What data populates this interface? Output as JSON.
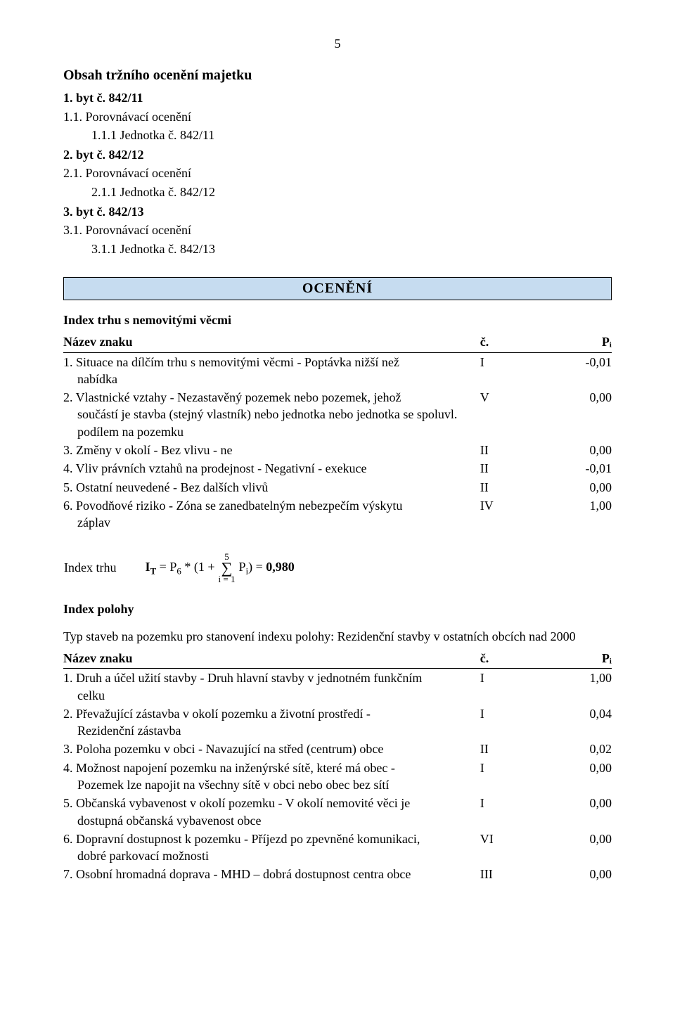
{
  "page_number": "5",
  "title": "Obsah tržního ocenění majetku",
  "toc": [
    {
      "num": "1. byt č. 842/11",
      "sub_num": "1.1. Porovnávací ocenění",
      "unit": "1.1.1 Jednotka č. 842/11"
    },
    {
      "num": "2. byt č. 842/12",
      "sub_num": "2.1. Porovnávací ocenění",
      "unit": "2.1.1 Jednotka č. 842/12"
    },
    {
      "num": "3. byt č. 842/13",
      "sub_num": "3.1. Porovnávací ocenění",
      "unit": "3.1.1 Jednotka č. 842/13"
    }
  ],
  "ocen_title": "OCENĚNÍ",
  "index_trhu_title": "Index trhu s nemovitými věcmi",
  "header": {
    "name": "Název znaku",
    "c": "č.",
    "p": "Pᵢ"
  },
  "index_trhu_rows": [
    {
      "n": "1. Situace na dílčím trhu s nemovitými věcmi - Poptávka nižší než",
      "cont": "nabídka",
      "c": "I",
      "p": "-0,01"
    },
    {
      "n": "2. Vlastnické vztahy - Nezastavěný pozemek nebo pozemek, jehož",
      "cont": "součástí je stavba (stejný vlastník) nebo jednotka nebo jednotka se spoluvl. podílem na pozemku",
      "c": "V",
      "p": "0,00"
    },
    {
      "n": "3. Změny v okolí - Bez vlivu - ne",
      "cont": "",
      "c": "II",
      "p": "0,00"
    },
    {
      "n": "4. Vliv právních vztahů na prodejnost - Negativní - exekuce",
      "cont": "",
      "c": "II",
      "p": "-0,01"
    },
    {
      "n": "5. Ostatní neuvedené - Bez dalších vlivů",
      "cont": "",
      "c": "II",
      "p": "0,00"
    },
    {
      "n": "6. Povodňové riziko - Zóna se zanedbatelným nebezpečím výskytu",
      "cont": "záplav",
      "c": "IV",
      "p": "1,00"
    }
  ],
  "formula": {
    "label": "Index trhu",
    "lhs": "I",
    "lhs_sub": "T",
    "eq1": " = P",
    "p6_sub": "6",
    "mid": " * (1 + ",
    "sum_top": "5",
    "sum_bot": "i = 1",
    "pi": " P",
    "pi_sub": "i",
    "close": ") = ",
    "result": "0,980"
  },
  "index_polohy_title": "Index polohy",
  "polohy_intro": "Typ staveb na pozemku pro stanovení indexu polohy: Rezidenční stavby v ostatních obcích nad 2000",
  "index_polohy_rows": [
    {
      "n": "1. Druh a účel užití stavby - Druh hlavní stavby v jednotném funkčním",
      "cont": "celku",
      "c": "I",
      "p": "1,00"
    },
    {
      "n": "2. Převažující zástavba v okolí pozemku a životní prostředí -",
      "cont": "Rezidenční zástavba",
      "c": "I",
      "p": "0,04"
    },
    {
      "n": "3. Poloha pozemku v obci - Navazující na střed (centrum) obce",
      "cont": "",
      "c": "II",
      "p": "0,02"
    },
    {
      "n": "4. Možnost napojení pozemku na inženýrské sítě, které má obec -",
      "cont": "Pozemek lze napojit na všechny sítě v obci nebo obec bez sítí",
      "c": "I",
      "p": "0,00"
    },
    {
      "n": "5. Občanská vybavenost v okolí pozemku - V okolí nemovité věci je",
      "cont": "dostupná občanská vybavenost obce",
      "c": "I",
      "p": "0,00"
    },
    {
      "n": "6. Dopravní dostupnost k pozemku - Příjezd po zpevněné komunikaci,",
      "cont": "dobré parkovací možnosti",
      "c": "VI",
      "p": "0,00"
    },
    {
      "n": "7. Osobní hromadná doprava - MHD – dobrá dostupnost centra obce",
      "cont": "",
      "c": "III",
      "p": "0,00"
    }
  ]
}
